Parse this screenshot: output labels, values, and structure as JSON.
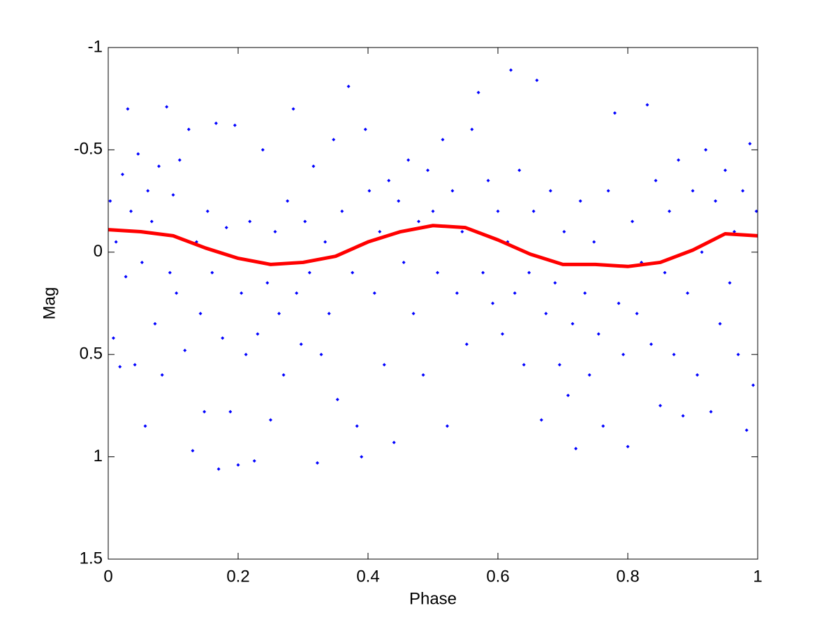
{
  "chart_data": {
    "type": "scatter",
    "xlabel": "Phase",
    "ylabel": "Mag",
    "xlim": [
      0,
      1
    ],
    "xticks": [
      0,
      0.2,
      0.4,
      0.6,
      0.8,
      1
    ],
    "ylim": [
      -1,
      1.5
    ],
    "yticks": [
      -1,
      -0.5,
      0,
      0.5,
      1,
      1.5
    ],
    "yreverse": true,
    "series": [
      {
        "kind": "points",
        "color": "#0000ff",
        "x": [
          0.003,
          0.008,
          0.012,
          0.018,
          0.022,
          0.027,
          0.03,
          0.035,
          0.041,
          0.046,
          0.052,
          0.057,
          0.061,
          0.067,
          0.072,
          0.078,
          0.083,
          0.09,
          0.095,
          0.1,
          0.105,
          0.11,
          0.118,
          0.124,
          0.13,
          0.136,
          0.142,
          0.148,
          0.153,
          0.16,
          0.166,
          0.17,
          0.176,
          0.182,
          0.188,
          0.195,
          0.2,
          0.205,
          0.212,
          0.218,
          0.225,
          0.23,
          0.238,
          0.245,
          0.25,
          0.257,
          0.263,
          0.27,
          0.276,
          0.285,
          0.29,
          0.297,
          0.303,
          0.31,
          0.316,
          0.322,
          0.328,
          0.334,
          0.34,
          0.347,
          0.353,
          0.36,
          0.37,
          0.376,
          0.383,
          0.39,
          0.396,
          0.402,
          0.41,
          0.418,
          0.425,
          0.432,
          0.44,
          0.447,
          0.455,
          0.462,
          0.47,
          0.478,
          0.485,
          0.492,
          0.5,
          0.507,
          0.515,
          0.522,
          0.53,
          0.537,
          0.545,
          0.552,
          0.56,
          0.57,
          0.577,
          0.585,
          0.592,
          0.6,
          0.607,
          0.615,
          0.62,
          0.626,
          0.633,
          0.64,
          0.648,
          0.655,
          0.66,
          0.667,
          0.674,
          0.681,
          0.688,
          0.695,
          0.702,
          0.708,
          0.715,
          0.72,
          0.727,
          0.734,
          0.741,
          0.748,
          0.755,
          0.762,
          0.77,
          0.78,
          0.786,
          0.793,
          0.8,
          0.807,
          0.814,
          0.821,
          0.83,
          0.836,
          0.843,
          0.85,
          0.857,
          0.864,
          0.871,
          0.878,
          0.885,
          0.892,
          0.9,
          0.907,
          0.914,
          0.92,
          0.928,
          0.935,
          0.942,
          0.95,
          0.957,
          0.964,
          0.97,
          0.977,
          0.983,
          0.988,
          0.993,
          0.998
        ],
        "values": [
          -0.25,
          0.42,
          -0.05,
          0.56,
          -0.38,
          0.12,
          -0.7,
          -0.2,
          0.55,
          -0.48,
          0.05,
          0.85,
          -0.3,
          -0.15,
          0.35,
          -0.42,
          0.6,
          -0.71,
          0.1,
          -0.28,
          0.2,
          -0.45,
          0.48,
          -0.6,
          0.97,
          -0.05,
          0.3,
          0.78,
          -0.2,
          0.1,
          -0.63,
          1.06,
          0.42,
          -0.12,
          0.78,
          -0.62,
          1.04,
          0.2,
          0.5,
          -0.15,
          1.02,
          0.4,
          -0.5,
          0.15,
          0.82,
          -0.1,
          0.3,
          0.6,
          -0.25,
          -0.7,
          0.2,
          0.45,
          -0.15,
          0.1,
          -0.42,
          1.03,
          0.5,
          -0.05,
          0.3,
          -0.55,
          0.72,
          -0.2,
          -0.81,
          0.1,
          0.85,
          1.0,
          -0.6,
          -0.3,
          0.2,
          -0.1,
          0.55,
          -0.35,
          0.93,
          -0.25,
          0.05,
          -0.45,
          0.3,
          -0.15,
          0.6,
          -0.4,
          -0.2,
          0.1,
          -0.55,
          0.85,
          -0.3,
          0.2,
          -0.1,
          0.45,
          -0.6,
          -0.78,
          0.1,
          -0.35,
          0.25,
          -0.2,
          0.4,
          -0.05,
          -0.89,
          0.2,
          -0.4,
          0.55,
          0.1,
          -0.2,
          -0.84,
          0.82,
          0.3,
          -0.3,
          0.15,
          0.55,
          -0.1,
          0.7,
          0.35,
          0.96,
          -0.25,
          0.2,
          0.6,
          -0.05,
          0.4,
          0.85,
          -0.3,
          -0.68,
          0.25,
          0.5,
          0.95,
          -0.15,
          0.3,
          0.05,
          -0.72,
          0.45,
          -0.35,
          0.75,
          0.1,
          -0.2,
          0.5,
          -0.45,
          0.8,
          0.2,
          -0.3,
          0.6,
          0.0,
          -0.5,
          0.78,
          -0.25,
          0.35,
          -0.4,
          0.15,
          -0.1,
          0.5,
          -0.3,
          0.87,
          -0.53,
          0.65,
          -0.2
        ]
      },
      {
        "kind": "line",
        "color": "#ff0000",
        "x": [
          0,
          0.05,
          0.1,
          0.15,
          0.2,
          0.25,
          0.3,
          0.35,
          0.4,
          0.45,
          0.5,
          0.55,
          0.6,
          0.65,
          0.7,
          0.75,
          0.8,
          0.85,
          0.9,
          0.95,
          1
        ],
        "values": [
          -0.11,
          -0.1,
          -0.08,
          -0.02,
          0.03,
          0.06,
          0.05,
          0.02,
          -0.05,
          -0.1,
          -0.13,
          -0.12,
          -0.06,
          0.01,
          0.06,
          0.06,
          0.07,
          0.05,
          -0.01,
          -0.09,
          -0.08
        ]
      }
    ]
  }
}
